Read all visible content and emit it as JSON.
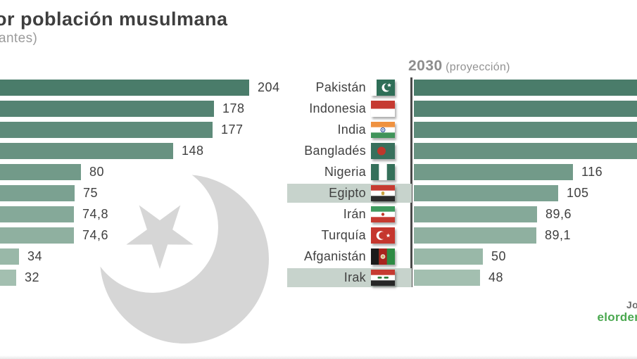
{
  "title": {
    "text_visible": "or población musulmana",
    "subtitle_visible": "antes)",
    "color": "#3e3e3e",
    "subtitle_color": "#9b9b9b"
  },
  "right_chart_header": {
    "year": "2030",
    "note": "(proyección)",
    "color": "#8d8d8d"
  },
  "credit": {
    "line1_visible": "Jo",
    "line2_visible": "elorden",
    "line1_color": "#6b6b6b",
    "line2_color": "#4aa84f"
  },
  "watermark": {
    "name": "crescent-and-star-icon",
    "color": "#d6d6d6"
  },
  "chart_data": [
    {
      "type": "bar",
      "orientation": "horizontal",
      "panel": "left (cropped at image edge, country labels off-screen)",
      "values": [
        204,
        178,
        177,
        148,
        80,
        75,
        74.8,
        74.6,
        34,
        32
      ],
      "value_labels": [
        "204",
        "178",
        "177",
        "148",
        "80",
        "75",
        "74,8",
        "74,6",
        "34",
        "32"
      ],
      "bar_colors": [
        "#4a7c6a",
        "#548372",
        "#5e8b7a",
        "#689281",
        "#729a89",
        "#7ba191",
        "#85a999",
        "#8fb0a0",
        "#99b8a8",
        "#a3bfb0"
      ],
      "axis_offscreen": true
    },
    {
      "type": "bar",
      "orientation": "horizontal",
      "panel": "2030 (proyección)",
      "categories": [
        "Pakistán",
        "Indonesia",
        "India",
        "Bangladés",
        "Nigeria",
        "Egipto",
        "Irán",
        "Turquía",
        "Afganistán",
        "Irak"
      ],
      "flags": [
        "pakistan",
        "indonesia",
        "india",
        "bangladesh",
        "nigeria",
        "egypt",
        "iran",
        "turkey",
        "afghanistan",
        "iraq"
      ],
      "values": [
        null,
        null,
        null,
        null,
        116,
        105,
        89.6,
        89.1,
        50,
        48
      ],
      "value_labels": [
        "",
        "",
        "",
        "",
        "116",
        "105",
        "89,6",
        "89,1",
        "50",
        "48"
      ],
      "cropped_right": [
        true,
        true,
        true,
        true,
        false,
        false,
        false,
        false,
        false,
        false
      ],
      "bar_colors": [
        "#4a7c6a",
        "#548372",
        "#5e8b7a",
        "#689281",
        "#729a89",
        "#7ba191",
        "#85a999",
        "#8fb0a0",
        "#99b8a8",
        "#a3bfb0"
      ],
      "highlighted_rows": [
        5,
        9
      ],
      "highlight_color": "#c7d3cc"
    }
  ]
}
